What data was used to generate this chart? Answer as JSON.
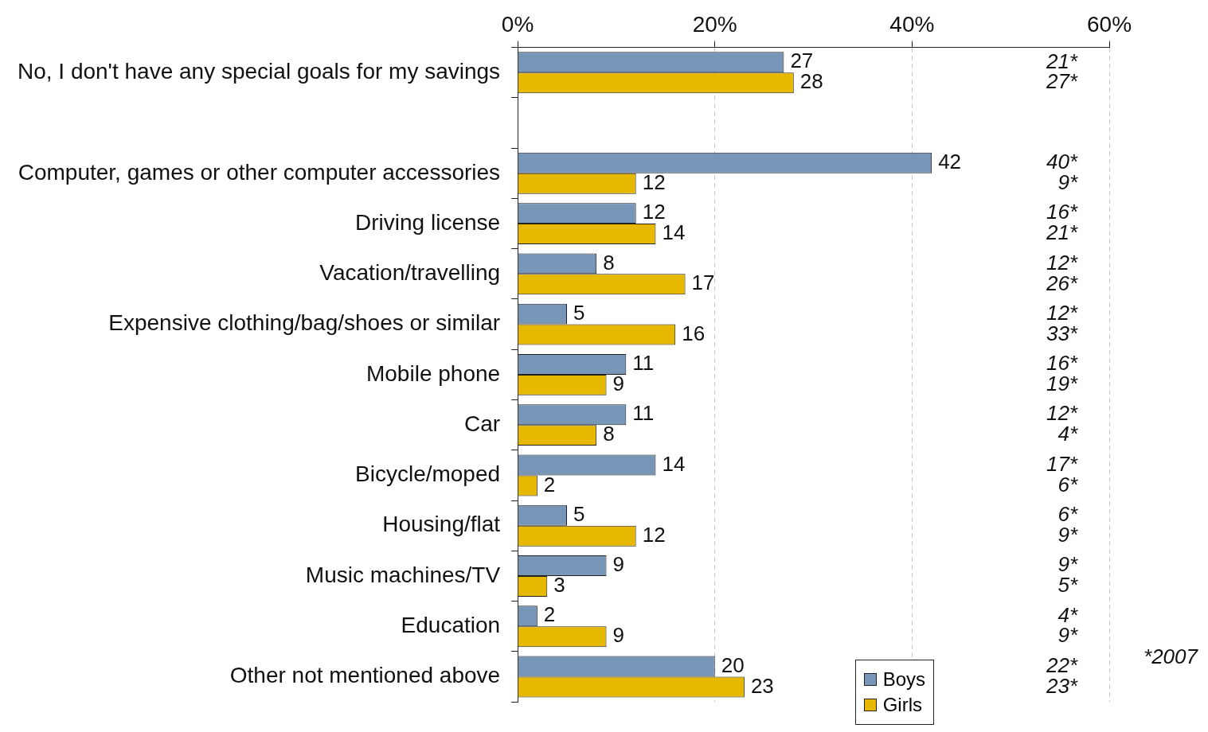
{
  "chart_data": {
    "type": "bar",
    "orientation": "horizontal",
    "categories": [
      "No, I don't have any special goals for my savings",
      null,
      "Computer, games or other computer accessories",
      "Driving license",
      "Vacation/travelling",
      "Expensive clothing/bag/shoes or similar",
      "Mobile phone",
      "Car",
      "Bicycle/moped",
      "Housing/flat",
      "Music machines/TV",
      "Education",
      "Other not mentioned above"
    ],
    "series": [
      {
        "name": "Boys",
        "color": "#7896b8",
        "values": [
          27,
          null,
          42,
          12,
          8,
          5,
          11,
          11,
          14,
          5,
          9,
          2,
          20
        ]
      },
      {
        "name": "Girls",
        "color": "#e6b800",
        "values": [
          28,
          null,
          12,
          14,
          17,
          16,
          9,
          8,
          2,
          12,
          3,
          9,
          23
        ]
      }
    ],
    "xlim": [
      0,
      60
    ],
    "xticks": [
      {
        "value": 0,
        "label": "0%"
      },
      {
        "value": 20,
        "label": "20%"
      },
      {
        "value": 40,
        "label": "40%"
      },
      {
        "value": 60,
        "label": "60%"
      }
    ],
    "grid": "x",
    "legend": "bottom right",
    "data_labels": true,
    "annotations": [
      "21*",
      "27*",
      "40*",
      "9*",
      "16*",
      "21*",
      "12*",
      "26*",
      "12*",
      "33*",
      "16*",
      "19*",
      "12*",
      "4*",
      "17*",
      "6*",
      "6*",
      "9*",
      "9*",
      "5*",
      "4*",
      "9*",
      "22*",
      "23*",
      "*2007"
    ]
  }
}
